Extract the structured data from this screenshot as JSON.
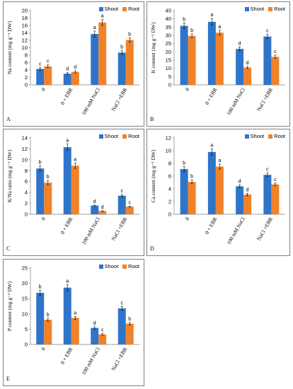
{
  "colors": {
    "shoot": "#2e75c9",
    "root": "#f0822a"
  },
  "legend": {
    "shoot": "Shoot",
    "root": "Root"
  },
  "chart_data": [
    {
      "panel": "A",
      "type": "bar",
      "categories": [
        "0",
        "0 + EBR",
        "100 mM NaCl",
        "NaCl +EBR"
      ],
      "ylabel": "Na content (mg g⁻¹ DW)",
      "ylim": [
        0,
        20
      ],
      "yticks": [
        0,
        2,
        4,
        6,
        8,
        10,
        12,
        14,
        16,
        18,
        20
      ],
      "series": [
        {
          "name": "Shoot",
          "values": [
            4.3,
            3.0,
            13.7,
            8.7
          ],
          "errors": [
            0.4,
            0.3,
            0.8,
            0.5
          ],
          "letters": [
            "c",
            "d",
            "a",
            "b"
          ]
        },
        {
          "name": "Root",
          "values": [
            5.0,
            3.5,
            16.8,
            12.1
          ],
          "errors": [
            0.4,
            0.3,
            0.8,
            0.6
          ],
          "letters": [
            "c",
            "d",
            "a",
            "b"
          ]
        }
      ]
    },
    {
      "panel": "B",
      "type": "bar",
      "categories": [
        "0",
        "0 + EBR",
        "100 mM NaCl",
        "NaCl +EBR"
      ],
      "ylabel": "K content (mg g⁻¹ DW)",
      "ylim": [
        0,
        45
      ],
      "yticks": [
        0,
        5,
        10,
        15,
        20,
        25,
        30,
        35,
        40,
        45
      ],
      "series": [
        {
          "name": "Shoot",
          "values": [
            35.8,
            38.2,
            21.8,
            29.3
          ],
          "errors": [
            1.8,
            2.0,
            1.2,
            1.3
          ],
          "letters": [
            "b",
            "a",
            "d",
            "c"
          ]
        },
        {
          "name": "Root",
          "values": [
            29.7,
            31.6,
            10.5,
            17.0
          ],
          "errors": [
            1.2,
            1.5,
            0.6,
            1.0
          ],
          "letters": [
            "b",
            "a",
            "d",
            "c"
          ]
        }
      ]
    },
    {
      "panel": "C",
      "type": "bar",
      "categories": [
        "0",
        "0 + EBR",
        "100 mM NaCl",
        "NaCl +EBR"
      ],
      "ylabel": "K/Na ratio (mg g⁻¹ DW)",
      "ylim": [
        0,
        14
      ],
      "yticks": [
        0,
        2,
        4,
        6,
        8,
        10,
        12,
        14
      ],
      "series": [
        {
          "name": "Shoot",
          "values": [
            8.4,
            12.3,
            1.6,
            3.4
          ],
          "errors": [
            0.5,
            0.6,
            0.1,
            0.2
          ],
          "letters": [
            "b",
            "a",
            "d",
            "c"
          ]
        },
        {
          "name": "Root",
          "values": [
            5.8,
            8.9,
            0.6,
            1.4
          ],
          "errors": [
            0.4,
            0.5,
            0.05,
            0.1
          ],
          "letters": [
            "b",
            "a",
            "d",
            "c"
          ]
        }
      ]
    },
    {
      "panel": "D",
      "type": "bar",
      "categories": [
        "0",
        "0 + EBR",
        "100 mM NaCl",
        "NaCl +EBR"
      ],
      "ylabel": "Ca content (mg g⁻¹ DW)",
      "ylim": [
        0,
        12
      ],
      "yticks": [
        0,
        2,
        4,
        6,
        8,
        10,
        12
      ],
      "series": [
        {
          "name": "Shoot",
          "values": [
            7.1,
            9.8,
            4.4,
            6.2
          ],
          "errors": [
            0.4,
            0.5,
            0.2,
            0.3
          ],
          "letters": [
            "b",
            "a",
            "d",
            "c"
          ]
        },
        {
          "name": "Root",
          "values": [
            5.1,
            7.5,
            3.1,
            4.7
          ],
          "errors": [
            0.3,
            0.4,
            0.2,
            0.2
          ],
          "letters": [
            "b",
            "a",
            "d",
            "c"
          ]
        }
      ]
    },
    {
      "panel": "E",
      "type": "bar",
      "categories": [
        "0",
        "0 + EBR",
        "100 mM NaCl",
        "NaCl +EBR"
      ],
      "ylabel": "P content (mg g⁻¹ DW)",
      "ylim": [
        0,
        25
      ],
      "yticks": [
        0,
        5,
        10,
        15,
        20,
        25
      ],
      "series": [
        {
          "name": "Shoot",
          "values": [
            16.9,
            18.6,
            5.4,
            11.8
          ],
          "errors": [
            0.8,
            1.0,
            0.4,
            0.6
          ],
          "letters": [
            "b",
            "a",
            "d",
            "c"
          ]
        },
        {
          "name": "Root",
          "values": [
            8.1,
            8.7,
            3.3,
            6.8
          ],
          "errors": [
            0.5,
            0.5,
            0.3,
            0.4
          ],
          "letters": [
            "b",
            "a",
            "c",
            "b"
          ]
        }
      ]
    }
  ]
}
